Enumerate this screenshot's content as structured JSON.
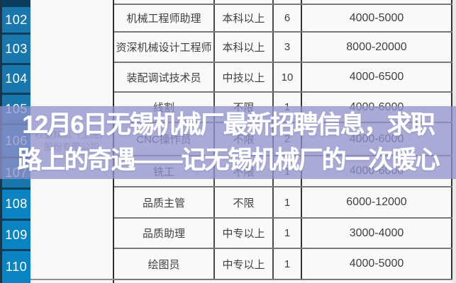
{
  "overlay": {
    "line1": "12月6日无锡机械厂最新招聘信息，求职",
    "line2": "路上的奇遇——记无锡机械厂的一次暖心"
  },
  "company": {
    "name_line1": "权重精机（上海）",
    "name_line2": "股份有限公司"
  },
  "rows": [
    {
      "id": "",
      "job": "",
      "edu": "",
      "count": "",
      "salary": ""
    },
    {
      "id": "102",
      "job": "机械工程师助理",
      "edu": "本科以上",
      "count": "6",
      "salary": "4000-5000"
    },
    {
      "id": "103",
      "job": "资深机械设计工程师",
      "edu": "本科以上",
      "count": "3",
      "salary": "8000-20000"
    },
    {
      "id": "104",
      "job": "装配调试技术员",
      "edu": "中技以上",
      "count": "10",
      "salary": "4000-6500"
    },
    {
      "id": "105",
      "job": "线割",
      "edu": "不限",
      "count": "1",
      "salary": "4000-6000"
    },
    {
      "id": "106",
      "job": "CNC操作员",
      "edu": "不限",
      "count": "2",
      "salary": "4000-6000"
    },
    {
      "id": "107",
      "job": "铣工",
      "edu": "不限",
      "count": "1",
      "salary": "4000-6000"
    },
    {
      "id": "108",
      "job": "品质主管",
      "edu": "不限",
      "count": "1",
      "salary": "6000-12000"
    },
    {
      "id": "109",
      "job": "品质助理",
      "edu": "中专以上",
      "count": "1",
      "salary": "3000-4000"
    },
    {
      "id": "110",
      "job": "绘图员",
      "edu": "中专以上",
      "count": "1",
      "salary": "4000-5000"
    }
  ],
  "colors": {
    "accent-blue": "#1a77ab",
    "accent-blue-bright": "#0a84c0",
    "overlay-bg": "rgba(143,145,202,0.76)",
    "overlay-text": "#ffffff"
  }
}
